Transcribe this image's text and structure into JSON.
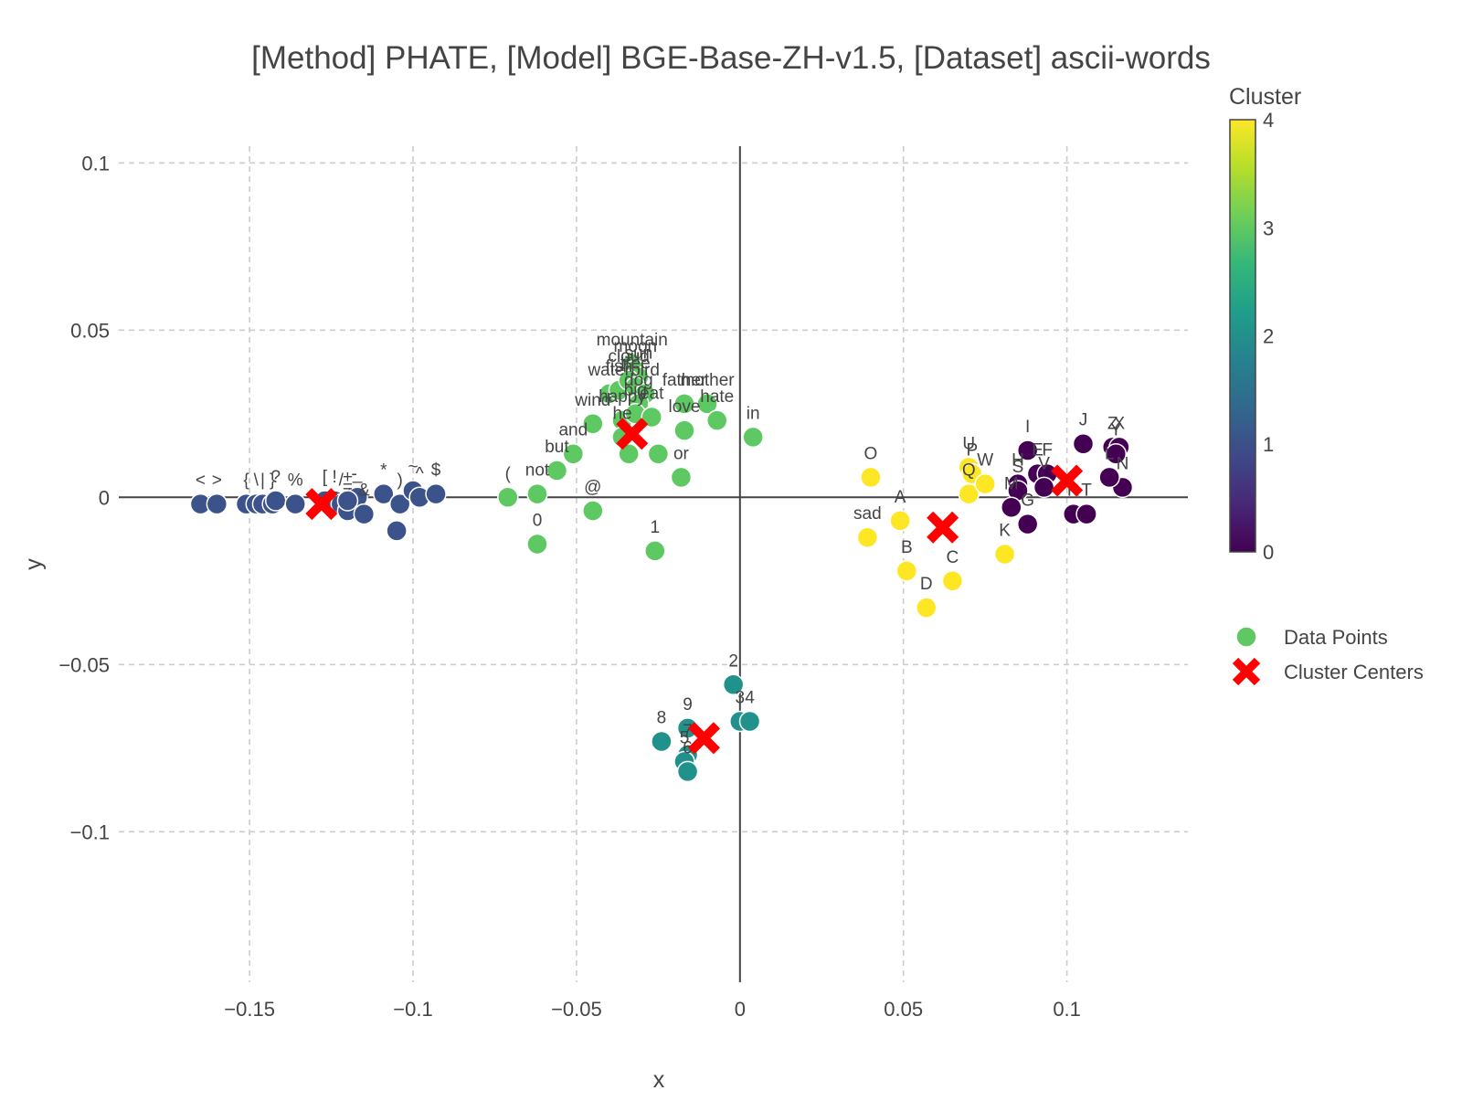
{
  "chart_data": {
    "type": "scatter",
    "title": "[Method] PHATE, [Model] BGE-Base-ZH-v1.5, [Dataset] ascii-words",
    "xlabel": "x",
    "ylabel": "y",
    "xlim": [
      -0.19,
      0.137
    ],
    "ylim": [
      -0.145,
      0.105
    ],
    "grid": true,
    "x_ticks": [
      -0.15,
      -0.1,
      -0.05,
      0,
      0.05,
      0.1
    ],
    "x_tick_labels": [
      "−0.15",
      "−0.1",
      "−0.05",
      "0",
      "0.05",
      "0.1"
    ],
    "y_ticks": [
      0.1,
      0.05,
      0,
      -0.05,
      -0.1
    ],
    "y_tick_labels": [
      "0.1",
      "0.05",
      "0",
      "−0.05",
      "−0.1"
    ],
    "colorbar": {
      "title": "Cluster",
      "min": 0,
      "max": 4,
      "ticks": [
        0,
        1,
        2,
        3,
        4
      ],
      "colors": [
        "#440154",
        "#3b528b",
        "#21918c",
        "#5ec962",
        "#fde725"
      ]
    },
    "legend": {
      "position": "right",
      "entries": [
        {
          "label": "Data Points",
          "marker": "circle",
          "color": "#5ec962"
        },
        {
          "label": "Cluster Centers",
          "marker": "x",
          "color": "#ff0000"
        }
      ]
    },
    "centers": [
      {
        "cluster": 0,
        "x": 0.1,
        "y": 0.005
      },
      {
        "cluster": 1,
        "x": -0.128,
        "y": -0.002
      },
      {
        "cluster": 2,
        "x": -0.011,
        "y": -0.072
      },
      {
        "cluster": 3,
        "x": -0.033,
        "y": 0.019
      },
      {
        "cluster": 4,
        "x": 0.062,
        "y": -0.009
      }
    ],
    "points": [
      {
        "label": "<",
        "x": -0.165,
        "y": -0.002,
        "cluster": 1
      },
      {
        "label": ">",
        "x": -0.16,
        "y": -0.002,
        "cluster": 1
      },
      {
        "label": "{",
        "x": -0.151,
        "y": -0.002,
        "cluster": 1
      },
      {
        "label": "\\",
        "x": -0.148,
        "y": -0.002,
        "cluster": 1
      },
      {
        "label": "|",
        "x": -0.146,
        "y": -0.002,
        "cluster": 1
      },
      {
        "label": "}",
        "x": -0.143,
        "y": -0.002,
        "cluster": 1
      },
      {
        "label": "?",
        "x": -0.142,
        "y": -0.001,
        "cluster": 1
      },
      {
        "label": "%",
        "x": -0.136,
        "y": -0.002,
        "cluster": 1
      },
      {
        "label": "[",
        "x": -0.127,
        "y": -0.001,
        "cluster": 1
      },
      {
        "label": "!",
        "x": -0.124,
        "y": -0.001,
        "cluster": 1
      },
      {
        "label": "/",
        "x": -0.122,
        "y": -0.002,
        "cluster": 1
      },
      {
        "label": "=",
        "x": -0.12,
        "y": -0.004,
        "cluster": 1
      },
      {
        "label": "-",
        "x": -0.118,
        "y": 0.0,
        "cluster": 1
      },
      {
        "label": "_",
        "x": -0.117,
        "y": 0.0,
        "cluster": 1
      },
      {
        "label": "&",
        "x": -0.115,
        "y": -0.005,
        "cluster": 1
      },
      {
        "label": "+",
        "x": -0.12,
        "y": -0.001,
        "cluster": 1
      },
      {
        "label": "*",
        "x": -0.109,
        "y": 0.001,
        "cluster": 1
      },
      {
        "label": ")",
        "x": -0.104,
        "y": -0.002,
        "cluster": 1
      },
      {
        "label": "~",
        "x": -0.1,
        "y": 0.002,
        "cluster": 1
      },
      {
        "label": "^",
        "x": -0.098,
        "y": 0.0,
        "cluster": 1
      },
      {
        "label": "$",
        "x": -0.093,
        "y": 0.001,
        "cluster": 1
      },
      {
        "label": "",
        "x": -0.105,
        "y": -0.01,
        "cluster": 1
      },
      {
        "label": "(",
        "x": -0.071,
        "y": 0.0,
        "cluster": 3
      },
      {
        "label": "not",
        "x": -0.062,
        "y": 0.001,
        "cluster": 3
      },
      {
        "label": "but",
        "x": -0.056,
        "y": 0.008,
        "cluster": 3
      },
      {
        "label": "and",
        "x": -0.051,
        "y": 0.013,
        "cluster": 3
      },
      {
        "label": "@",
        "x": -0.045,
        "y": -0.004,
        "cluster": 3
      },
      {
        "label": "0",
        "x": -0.062,
        "y": -0.014,
        "cluster": 3
      },
      {
        "label": "wind",
        "x": -0.045,
        "y": 0.022,
        "cluster": 3
      },
      {
        "label": "water",
        "x": -0.04,
        "y": 0.031,
        "cluster": 3
      },
      {
        "label": "fish",
        "x": -0.037,
        "y": 0.032,
        "cluster": 3
      },
      {
        "label": "mountain",
        "x": -0.033,
        "y": 0.04,
        "cluster": 3
      },
      {
        "label": "moon",
        "x": -0.032,
        "y": 0.038,
        "cluster": 3
      },
      {
        "label": "sun",
        "x": -0.031,
        "y": 0.036,
        "cluster": 3
      },
      {
        "label": "cloud",
        "x": -0.034,
        "y": 0.035,
        "cluster": 3
      },
      {
        "label": "tree",
        "x": -0.032,
        "y": 0.033,
        "cluster": 3
      },
      {
        "label": "bird",
        "x": -0.029,
        "y": 0.031,
        "cluster": 3
      },
      {
        "label": "dog",
        "x": -0.031,
        "y": 0.028,
        "cluster": 3
      },
      {
        "label": "happy",
        "x": -0.036,
        "y": 0.023,
        "cluster": 3
      },
      {
        "label": "big",
        "x": -0.032,
        "y": 0.025,
        "cluster": 3
      },
      {
        "label": "he",
        "x": -0.036,
        "y": 0.018,
        "cluster": 3
      },
      {
        "label": "eat",
        "x": -0.027,
        "y": 0.024,
        "cluster": 3
      },
      {
        "label": "",
        "x": -0.034,
        "y": 0.013,
        "cluster": 3
      },
      {
        "label": "",
        "x": -0.025,
        "y": 0.013,
        "cluster": 3
      },
      {
        "label": "father",
        "x": -0.017,
        "y": 0.028,
        "cluster": 3
      },
      {
        "label": "mother",
        "x": -0.01,
        "y": 0.028,
        "cluster": 3
      },
      {
        "label": "love",
        "x": -0.017,
        "y": 0.02,
        "cluster": 3
      },
      {
        "label": "hate",
        "x": -0.007,
        "y": 0.023,
        "cluster": 3
      },
      {
        "label": "or",
        "x": -0.018,
        "y": 0.006,
        "cluster": 3
      },
      {
        "label": "in",
        "x": 0.004,
        "y": 0.018,
        "cluster": 3
      },
      {
        "label": "1",
        "x": -0.026,
        "y": -0.016,
        "cluster": 3
      },
      {
        "label": "2",
        "x": -0.002,
        "y": -0.056,
        "cluster": 2
      },
      {
        "label": "3",
        "x": 0.0,
        "y": -0.067,
        "cluster": 2
      },
      {
        "label": "4",
        "x": 0.003,
        "y": -0.067,
        "cluster": 2
      },
      {
        "label": "9",
        "x": -0.016,
        "y": -0.069,
        "cluster": 2
      },
      {
        "label": "8",
        "x": -0.024,
        "y": -0.073,
        "cluster": 2
      },
      {
        "label": "7",
        "x": -0.016,
        "y": -0.077,
        "cluster": 2
      },
      {
        "label": "5",
        "x": -0.017,
        "y": -0.079,
        "cluster": 2
      },
      {
        "label": "6",
        "x": -0.016,
        "y": -0.082,
        "cluster": 2
      },
      {
        "label": "O",
        "x": 0.04,
        "y": 0.006,
        "cluster": 4
      },
      {
        "label": "A",
        "x": 0.049,
        "y": -0.007,
        "cluster": 4
      },
      {
        "label": "sad",
        "x": 0.039,
        "y": -0.012,
        "cluster": 4
      },
      {
        "label": "B",
        "x": 0.051,
        "y": -0.022,
        "cluster": 4
      },
      {
        "label": "D",
        "x": 0.057,
        "y": -0.033,
        "cluster": 4
      },
      {
        "label": "C",
        "x": 0.065,
        "y": -0.025,
        "cluster": 4
      },
      {
        "label": "U",
        "x": 0.07,
        "y": 0.009,
        "cluster": 4
      },
      {
        "label": "P",
        "x": 0.071,
        "y": 0.007,
        "cluster": 4
      },
      {
        "label": "Q",
        "x": 0.07,
        "y": 0.001,
        "cluster": 4
      },
      {
        "label": "W",
        "x": 0.075,
        "y": 0.004,
        "cluster": 4
      },
      {
        "label": "K",
        "x": 0.081,
        "y": -0.017,
        "cluster": 4
      },
      {
        "label": "I",
        "x": 0.088,
        "y": 0.014,
        "cluster": 0
      },
      {
        "label": "H",
        "x": 0.085,
        "y": 0.004,
        "cluster": 0
      },
      {
        "label": "S",
        "x": 0.085,
        "y": 0.002,
        "cluster": 0
      },
      {
        "label": "M",
        "x": 0.083,
        "y": -0.003,
        "cluster": 0
      },
      {
        "label": "G",
        "x": 0.088,
        "y": -0.008,
        "cluster": 0
      },
      {
        "label": "E",
        "x": 0.091,
        "y": 0.007,
        "cluster": 0
      },
      {
        "label": "F",
        "x": 0.094,
        "y": 0.007,
        "cluster": 0
      },
      {
        "label": "V",
        "x": 0.093,
        "y": 0.003,
        "cluster": 0
      },
      {
        "label": "J",
        "x": 0.105,
        "y": 0.016,
        "cluster": 0
      },
      {
        "label": "R",
        "x": 0.102,
        "y": -0.005,
        "cluster": 0
      },
      {
        "label": "Z",
        "x": 0.114,
        "y": 0.015,
        "cluster": 0
      },
      {
        "label": "X",
        "x": 0.116,
        "y": 0.015,
        "cluster": 0
      },
      {
        "label": "Y",
        "x": 0.115,
        "y": 0.013,
        "cluster": 0
      },
      {
        "label": "N",
        "x": 0.117,
        "y": 0.003,
        "cluster": 0
      },
      {
        "label": "L",
        "x": 0.113,
        "y": 0.006,
        "cluster": 0
      },
      {
        "label": "T",
        "x": 0.106,
        "y": -0.005,
        "cluster": 0
      }
    ]
  }
}
